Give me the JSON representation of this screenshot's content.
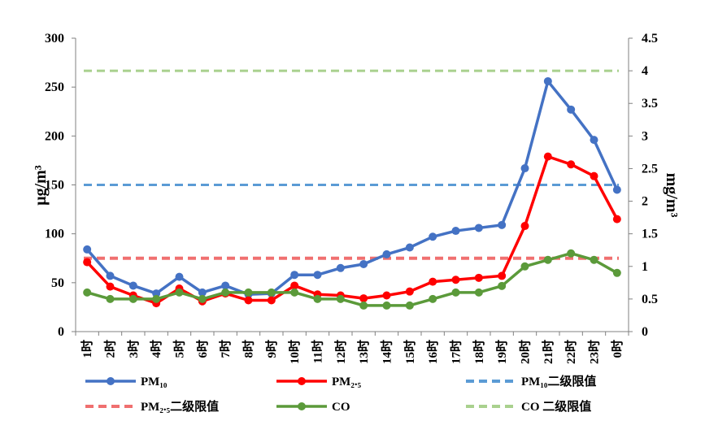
{
  "chart_data": {
    "type": "line",
    "title": "",
    "categories": [
      "1时",
      "2时",
      "3时",
      "4时",
      "5时",
      "6时",
      "7时",
      "8时",
      "9时",
      "10时",
      "11时",
      "12时",
      "13时",
      "14时",
      "15时",
      "16时",
      "17时",
      "18时",
      "19时",
      "20时",
      "21时",
      "22时",
      "23时",
      "0时"
    ],
    "ylabel_left": "μg/m³",
    "ylabel_right": "mg/m³",
    "ylim_left": [
      0,
      300
    ],
    "ylim_right": [
      0,
      4.5
    ],
    "yticks_left": [
      "0",
      "50",
      "100",
      "150",
      "200",
      "250",
      "300"
    ],
    "yticks_right": [
      "0",
      "0.5",
      "1",
      "1.5",
      "2",
      "2.5",
      "3",
      "3.5",
      "4",
      "4.5"
    ],
    "series": [
      {
        "name": "PM₁₀",
        "axis": "left",
        "color": "#4472C4",
        "values": [
          84,
          57,
          47,
          39,
          56,
          40,
          47,
          38,
          39,
          58,
          58,
          65,
          69,
          79,
          86,
          97,
          103,
          106,
          109,
          167,
          256,
          227,
          196,
          145
        ]
      },
      {
        "name": "PM₂.₅",
        "axis": "left",
        "color": "#FF0000",
        "values": [
          71,
          46,
          37,
          29,
          44,
          31,
          39,
          32,
          32,
          47,
          38,
          37,
          34,
          37,
          41,
          51,
          53,
          55,
          57,
          108,
          179,
          171,
          159,
          115
        ]
      },
      {
        "name": "CO",
        "axis": "right",
        "color": "#5B9A3A",
        "values": [
          0.6,
          0.5,
          0.5,
          0.5,
          0.6,
          0.5,
          0.6,
          0.6,
          0.6,
          0.6,
          0.5,
          0.5,
          0.4,
          0.4,
          0.4,
          0.5,
          0.6,
          0.6,
          0.7,
          1.0,
          1.1,
          1.2,
          1.1,
          0.9
        ]
      }
    ],
    "reference_lines": [
      {
        "name": "PM₁₀二级限值",
        "axis": "left",
        "value": 150,
        "color": "#5B9BD5"
      },
      {
        "name": "PM₂.₅二级限值",
        "axis": "left",
        "value": 75,
        "color": "#F07070"
      },
      {
        "name": "CO 二级限值",
        "axis": "right",
        "value": 4,
        "color": "#A9D18E"
      }
    ],
    "legend": [
      {
        "label": "PM₁₀",
        "kind": "line-marker",
        "color": "#4472C4"
      },
      {
        "label": "PM₂.₅",
        "kind": "line-marker",
        "color": "#FF0000"
      },
      {
        "label": "PM₁₀二级限值",
        "kind": "dash",
        "color": "#5B9BD5"
      },
      {
        "label": "PM₂.₅二级限值",
        "kind": "dash",
        "color": "#F07070"
      },
      {
        "label": "CO",
        "kind": "line-marker",
        "color": "#5B9A3A"
      },
      {
        "label": "CO 二级限值",
        "kind": "dash",
        "color": "#A9D18E"
      }
    ],
    "legend_position": "bottom",
    "grid": false
  }
}
